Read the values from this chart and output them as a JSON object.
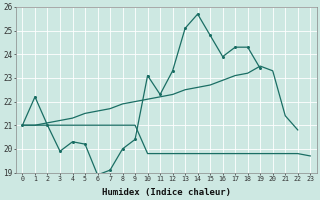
{
  "xlabel": "Humidex (Indice chaleur)",
  "background_color": "#cde8e2",
  "grid_color": "#ffffff",
  "line_color": "#1a6e64",
  "x_ticks": [
    0,
    1,
    2,
    3,
    4,
    5,
    6,
    7,
    8,
    9,
    10,
    11,
    12,
    13,
    14,
    15,
    16,
    17,
    18,
    19,
    20,
    21,
    22,
    23
  ],
  "ylim": [
    19,
    26
  ],
  "y_ticks": [
    19,
    20,
    21,
    22,
    23,
    24,
    25,
    26
  ],
  "line1_y": [
    21.0,
    22.2,
    21.0,
    19.9,
    20.3,
    20.2,
    18.9,
    19.1,
    20.0,
    20.4,
    23.1,
    22.3,
    23.3,
    25.1,
    25.7,
    24.8,
    23.9,
    24.3,
    24.3,
    23.4,
    null,
    null,
    null,
    null
  ],
  "line2_y": [
    21.0,
    21.0,
    21.1,
    21.2,
    21.3,
    21.5,
    21.6,
    21.7,
    21.9,
    22.0,
    22.1,
    22.2,
    22.3,
    22.5,
    22.6,
    22.7,
    22.9,
    23.1,
    23.2,
    23.5,
    23.3,
    21.4,
    20.8,
    null
  ],
  "line3_y": [
    21.0,
    21.0,
    21.0,
    21.0,
    21.0,
    21.0,
    21.0,
    21.0,
    21.0,
    21.0,
    19.8,
    19.8,
    19.8,
    19.8,
    19.8,
    19.8,
    19.8,
    19.8,
    19.8,
    19.8,
    19.8,
    19.8,
    19.8,
    19.7
  ]
}
